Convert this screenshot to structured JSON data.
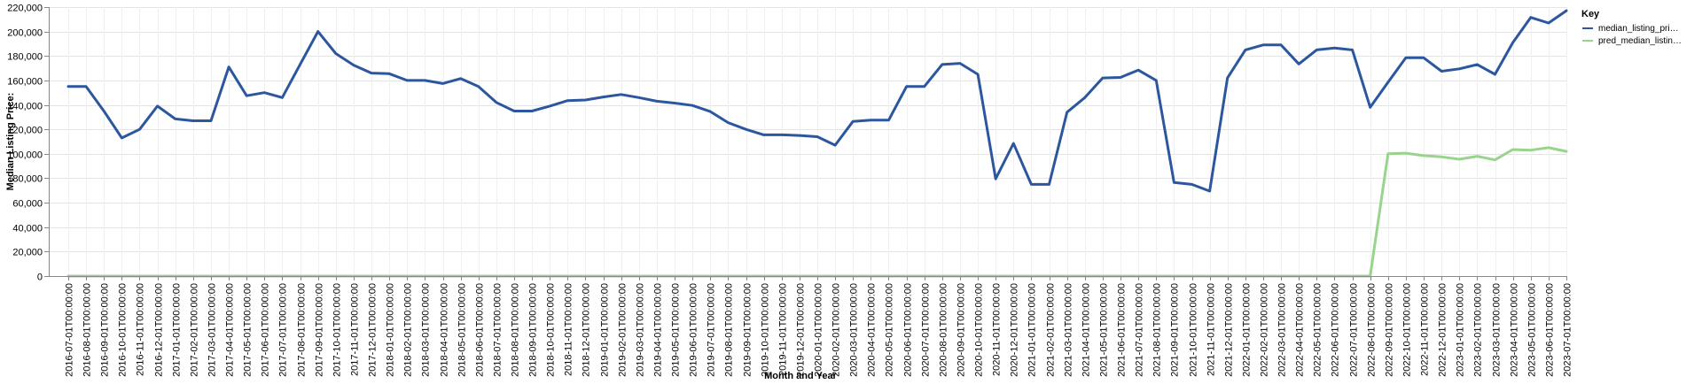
{
  "chart_data": {
    "type": "line",
    "xlabel": "Month and Year",
    "ylabel": "Median Listing Price:",
    "ylim": [
      0,
      220000
    ],
    "y_ticks": [
      "0",
      "20,000",
      "40,000",
      "60,000",
      "80,000",
      "100,000",
      "120,000",
      "140,000",
      "160,000",
      "180,000",
      "200,000",
      "220,000"
    ],
    "grid": true,
    "legend_position": "right",
    "legend_title": "Key",
    "x": [
      "2016-07-01T00:00:00",
      "2016-08-01T00:00:00",
      "2016-09-01T00:00:00",
      "2016-10-01T00:00:00",
      "2016-11-01T00:00:00",
      "2016-12-01T00:00:00",
      "2017-01-01T00:00:00",
      "2017-02-01T00:00:00",
      "2017-03-01T00:00:00",
      "2017-04-01T00:00:00",
      "2017-05-01T00:00:00",
      "2017-06-01T00:00:00",
      "2017-07-01T00:00:00",
      "2017-08-01T00:00:00",
      "2017-09-01T00:00:00",
      "2017-10-01T00:00:00",
      "2017-11-01T00:00:00",
      "2017-12-01T00:00:00",
      "2018-01-01T00:00:00",
      "2018-02-01T00:00:00",
      "2018-03-01T00:00:00",
      "2018-04-01T00:00:00",
      "2018-05-01T00:00:00",
      "2018-06-01T00:00:00",
      "2018-07-01T00:00:00",
      "2018-08-01T00:00:00",
      "2018-09-01T00:00:00",
      "2018-10-01T00:00:00",
      "2018-11-01T00:00:00",
      "2018-12-01T00:00:00",
      "2019-01-01T00:00:00",
      "2019-02-01T00:00:00",
      "2019-03-01T00:00:00",
      "2019-04-01T00:00:00",
      "2019-05-01T00:00:00",
      "2019-06-01T00:00:00",
      "2019-07-01T00:00:00",
      "2019-08-01T00:00:00",
      "2019-09-01T00:00:00",
      "2019-10-01T00:00:00",
      "2019-11-01T00:00:00",
      "2019-12-01T00:00:00",
      "2020-01-01T00:00:00",
      "2020-02-01T00:00:00",
      "2020-03-01T00:00:00",
      "2020-04-01T00:00:00",
      "2020-05-01T00:00:00",
      "2020-06-01T00:00:00",
      "2020-07-01T00:00:00",
      "2020-08-01T00:00:00",
      "2020-09-01T00:00:00",
      "2020-10-01T00:00:00",
      "2020-11-01T00:00:00",
      "2020-12-01T00:00:00",
      "2021-01-01T00:00:00",
      "2021-02-01T00:00:00",
      "2021-03-01T00:00:00",
      "2021-04-01T00:00:00",
      "2021-05-01T00:00:00",
      "2021-06-01T00:00:00",
      "2021-07-01T00:00:00",
      "2021-08-01T00:00:00",
      "2021-09-01T00:00:00",
      "2021-10-01T00:00:00",
      "2021-11-01T00:00:00",
      "2021-12-01T00:00:00",
      "2022-01-01T00:00:00",
      "2022-02-01T00:00:00",
      "2022-03-01T00:00:00",
      "2022-04-01T00:00:00",
      "2022-05-01T00:00:00",
      "2022-06-01T00:00:00",
      "2022-07-01T00:00:00",
      "2022-08-01T00:00:00",
      "2022-09-01T00:00:00",
      "2022-10-01T00:00:00",
      "2022-11-01T00:00:00",
      "2022-12-01T00:00:00",
      "2023-01-01T00:00:00",
      "2023-02-01T00:00:00",
      "2023-03-01T00:00:00",
      "2023-04-01T00:00:00",
      "2023-05-01T00:00:00",
      "2023-06-01T00:00:00",
      "2023-07-01T00:00:00"
    ],
    "series": [
      {
        "name": "median_listing_pri…",
        "color": "#2c579e",
        "values": [
          155000,
          155000,
          135000,
          113000,
          120000,
          139000,
          128500,
          127000,
          127000,
          171000,
          147500,
          150000,
          146000,
          173000,
          200000,
          182000,
          172500,
          166000,
          165500,
          160000,
          160000,
          157500,
          161500,
          155000,
          142000,
          135000,
          135000,
          139000,
          143500,
          144000,
          146500,
          148500,
          146000,
          143000,
          141500,
          139500,
          134500,
          125500,
          120000,
          115500,
          115500,
          115000,
          114000,
          107000,
          126500,
          127500,
          127500,
          155000,
          155000,
          173000,
          174000,
          165000,
          79500,
          108500,
          75000,
          75000,
          134000,
          146000,
          162000,
          162500,
          168500,
          160000,
          76500,
          75000,
          69500,
          162000,
          185000,
          189000,
          189000,
          173500,
          185000,
          186500,
          185000,
          138000,
          158500,
          178500,
          178500,
          167500,
          169500,
          173000,
          165000,
          191000,
          211500,
          207000,
          217000
        ]
      },
      {
        "name": "pred_median_listin…",
        "color": "#98d48d",
        "values": [
          0,
          0,
          0,
          0,
          0,
          0,
          0,
          0,
          0,
          0,
          0,
          0,
          0,
          0,
          0,
          0,
          0,
          0,
          0,
          0,
          0,
          0,
          0,
          0,
          0,
          0,
          0,
          0,
          0,
          0,
          0,
          0,
          0,
          0,
          0,
          0,
          0,
          0,
          0,
          0,
          0,
          0,
          0,
          0,
          0,
          0,
          0,
          0,
          0,
          0,
          0,
          0,
          0,
          0,
          0,
          0,
          0,
          0,
          0,
          0,
          0,
          0,
          0,
          0,
          0,
          0,
          0,
          0,
          0,
          0,
          0,
          0,
          0,
          0,
          100000,
          100500,
          98500,
          97500,
          95500,
          98000,
          95000,
          103500,
          103000,
          105000,
          102000
        ]
      }
    ]
  }
}
